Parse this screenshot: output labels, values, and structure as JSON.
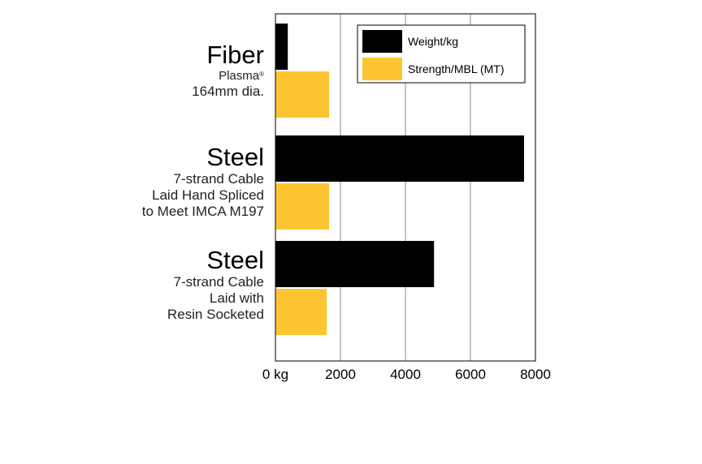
{
  "chart_data": {
    "type": "bar",
    "orientation": "horizontal",
    "categories": [
      {
        "title": "Fiber",
        "lines": [
          "Plasma",
          "164mm dia."
        ],
        "registered_mark": "®"
      },
      {
        "title": "Steel",
        "lines": [
          "7-strand Cable",
          "Laid Hand Spliced",
          "to Meet IMCA M197"
        ]
      },
      {
        "title": "Steel",
        "lines": [
          "7-strand Cable",
          "Laid with",
          "Resin Socketed"
        ]
      }
    ],
    "series": [
      {
        "name": "Weight/kg",
        "color": "#000000",
        "values": [
          380,
          7650,
          4880
        ]
      },
      {
        "name": "Strength/MBL (MT)",
        "color": "#FDC531",
        "values": [
          1650,
          1650,
          1580
        ]
      }
    ],
    "xlim": [
      0,
      8000
    ],
    "x_ticks": [
      "0 kg",
      "2000",
      "4000",
      "6000",
      "8000"
    ],
    "x_tick_values": [
      0,
      2000,
      4000,
      6000,
      8000
    ],
    "grid": "vertical",
    "legend_position": "top-right"
  }
}
